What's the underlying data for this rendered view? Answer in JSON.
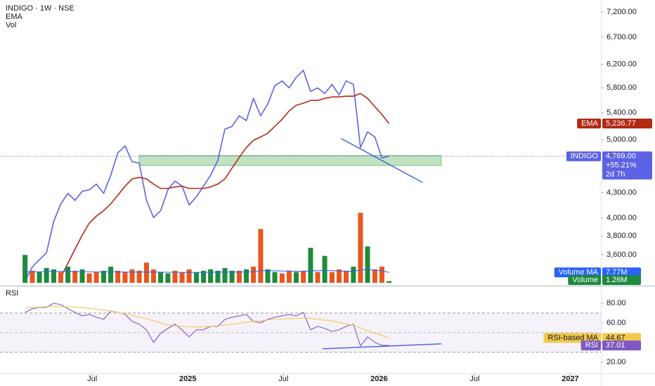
{
  "chart_data": [
    {
      "type": "line",
      "title": "INDIGO · 1W · NSE",
      "log": true,
      "change_label": "+55.21%",
      "countdown": "2d 7h",
      "xlim": [
        2024.018,
        2027.16
      ],
      "ylim": [
        3310,
        7450
      ],
      "yticks": [
        {
          "value": 7200,
          "label": "7,200.00"
        },
        {
          "value": 6700,
          "label": "6,700.00"
        },
        {
          "value": 6200,
          "label": "6,200.00"
        },
        {
          "value": 5800,
          "label": "5,800.00"
        },
        {
          "value": 5400,
          "label": "5,400.00"
        },
        {
          "value": 5000,
          "label": "5,000.00"
        },
        {
          "value": 4300,
          "label": "4,300.00"
        },
        {
          "value": 4000,
          "label": "4,000.00"
        },
        {
          "value": 3800,
          "label": "3,800.00"
        },
        {
          "value": 3600,
          "label": "3,600.00"
        }
      ],
      "x": [
        2024.149,
        2024.187,
        2024.224,
        2024.261,
        2024.299,
        2024.336,
        2024.373,
        2024.41,
        2024.448,
        2024.485,
        2024.522,
        2024.56,
        2024.597,
        2024.634,
        2024.672,
        2024.709,
        2024.746,
        2024.784,
        2024.821,
        2024.858,
        2024.896,
        2024.933,
        2024.97,
        2025.007,
        2025.045,
        2025.082,
        2025.119,
        2025.157,
        2025.194,
        2025.231,
        2025.269,
        2025.306,
        2025.343,
        2025.381,
        2025.418,
        2025.455,
        2025.493,
        2025.53,
        2025.567,
        2025.604,
        2025.642,
        2025.679,
        2025.716,
        2025.754,
        2025.791,
        2025.828,
        2025.866,
        2025.903,
        2025.94,
        2025.978,
        2026.015,
        2026.052
      ],
      "series": [
        {
          "name": "INDIGO",
          "color": "#5b62e3",
          "values": [
            3342,
            3478,
            3550,
            3620,
            3961,
            4164,
            4290,
            4205,
            4316,
            4334,
            4405,
            4290,
            4517,
            4815,
            4912,
            4696,
            4677,
            4205,
            4003,
            4083,
            4334,
            4443,
            4380,
            4150,
            4248,
            4380,
            4517,
            4714,
            5153,
            5194,
            5353,
            5280,
            5626,
            5353,
            5538,
            5832,
            5914,
            5797,
            5974,
            6095,
            5739,
            5797,
            5705,
            5855,
            5683,
            5914,
            5855,
            4890,
            5113,
            5040,
            4745,
            4769
          ],
          "value_labels": [
            null,
            null,
            null,
            null,
            null,
            null,
            null,
            null,
            null,
            null,
            null,
            null,
            null,
            null,
            null,
            null,
            null,
            null,
            null,
            null,
            null,
            null,
            null,
            null,
            null,
            null,
            null,
            null,
            null,
            null,
            null,
            null,
            null,
            null,
            null,
            null,
            null,
            null,
            null,
            null,
            null,
            null,
            null,
            null,
            null,
            null,
            null,
            null,
            null,
            null,
            null,
            "4,769.00"
          ]
        },
        {
          "name": "EMA",
          "color": "#b22a14",
          "values": [
            null,
            null,
            null,
            null,
            null,
            3376,
            3514,
            3658,
            3808,
            3941,
            4020,
            4083,
            4164,
            4266,
            4380,
            4471,
            4490,
            4471,
            4405,
            4351,
            4351,
            4369,
            4380,
            4351,
            4351,
            4351,
            4369,
            4405,
            4471,
            4610,
            4753,
            4890,
            4992,
            5040,
            5093,
            5194,
            5300,
            5429,
            5516,
            5549,
            5593,
            5593,
            5626,
            5650,
            5650,
            5661,
            5661,
            5706,
            5626,
            5494,
            5374,
            5236.77
          ],
          "value_labels": [
            null,
            null,
            null,
            null,
            null,
            null,
            null,
            null,
            null,
            null,
            null,
            null,
            null,
            null,
            null,
            null,
            null,
            null,
            null,
            null,
            null,
            null,
            null,
            null,
            null,
            null,
            null,
            null,
            null,
            null,
            null,
            null,
            null,
            null,
            null,
            null,
            null,
            null,
            null,
            null,
            null,
            null,
            null,
            null,
            null,
            null,
            null,
            null,
            null,
            null,
            null,
            "5,236.77"
          ]
        }
      ],
      "drawings": [
        {
          "type": "zone",
          "color": "#4caf50",
          "x": [
            2024.746,
            2026.325
          ],
          "y": [
            4780,
            4646
          ]
        },
        {
          "type": "trendline",
          "color": "#3d5fd9",
          "x": [
            2025.802,
            2026.228
          ],
          "y": [
            5017,
            4425
          ]
        }
      ]
    },
    {
      "type": "bar",
      "title": "Vol",
      "xlim": [
        2024.018,
        2027.16
      ],
      "ylim": [
        0,
        210
      ],
      "up_color": "#1e8a3c",
      "down_color": "#e8571f",
      "x": [
        2024.149,
        2024.187,
        2024.224,
        2024.261,
        2024.299,
        2024.336,
        2024.373,
        2024.41,
        2024.448,
        2024.485,
        2024.522,
        2024.56,
        2024.597,
        2024.634,
        2024.672,
        2024.709,
        2024.746,
        2024.784,
        2024.821,
        2024.858,
        2024.896,
        2024.933,
        2024.97,
        2025.007,
        2025.045,
        2025.082,
        2025.119,
        2025.157,
        2025.194,
        2025.231,
        2025.269,
        2025.306,
        2025.343,
        2025.381,
        2025.418,
        2025.455,
        2025.493,
        2025.53,
        2025.567,
        2025.604,
        2025.642,
        2025.679,
        2025.716,
        2025.754,
        2025.791,
        2025.828,
        2025.866,
        2025.903,
        2025.94,
        2025.978,
        2026.015,
        2026.052
      ],
      "series": [
        {
          "name": "Volume",
          "color": "#1e8a3c",
          "values": [
            20.7,
            9,
            8,
            11,
            10,
            8,
            12,
            9,
            10,
            7,
            8,
            9,
            12,
            9,
            8,
            10,
            9,
            15,
            10,
            8,
            7,
            9,
            8,
            10,
            8,
            9,
            10,
            9,
            11,
            9,
            9,
            10,
            12,
            40,
            10,
            8,
            7,
            9,
            8,
            9,
            26,
            8,
            20,
            8,
            10,
            9,
            12,
            52,
            27,
            10,
            12,
            1.26
          ],
          "up": [
            true,
            false,
            true,
            true,
            true,
            false,
            true,
            false,
            true,
            false,
            false,
            true,
            true,
            false,
            false,
            false,
            false,
            false,
            false,
            true,
            true,
            false,
            false,
            false,
            true,
            true,
            true,
            true,
            true,
            true,
            false,
            true,
            false,
            false,
            true,
            true,
            false,
            false,
            true,
            false,
            true,
            false,
            true,
            false,
            false,
            false,
            true,
            false,
            true,
            false,
            false,
            true
          ],
          "value_labels": [
            null,
            null,
            null,
            null,
            null,
            null,
            null,
            null,
            null,
            null,
            null,
            null,
            null,
            null,
            null,
            null,
            null,
            null,
            null,
            null,
            null,
            null,
            null,
            null,
            null,
            null,
            null,
            null,
            null,
            null,
            null,
            null,
            null,
            null,
            null,
            null,
            null,
            null,
            null,
            null,
            null,
            null,
            null,
            null,
            null,
            null,
            null,
            null,
            null,
            null,
            null,
            "1.26M"
          ]
        },
        {
          "name": "Volume MA",
          "type": "line",
          "color": "#2962ff",
          "values": [
            8.2,
            8.3,
            8.2,
            8.4,
            8.5,
            8.4,
            8.5,
            8.4,
            8.3,
            8.2,
            8.1,
            8.1,
            8.2,
            8.1,
            8.0,
            7.9,
            7.9,
            8.1,
            8.0,
            7.9,
            7.8,
            7.8,
            7.7,
            7.8,
            7.7,
            7.7,
            7.8,
            7.9,
            8.0,
            8.0,
            8.0,
            8.1,
            8.2,
            9.1,
            9.0,
            8.9,
            8.8,
            8.7,
            8.6,
            8.5,
            9.0,
            8.9,
            9.2,
            9.0,
            8.8,
            8.6,
            8.5,
            9.6,
            9.9,
            9.4,
            8.9,
            7.77
          ],
          "value_labels": [
            null,
            null,
            null,
            null,
            null,
            null,
            null,
            null,
            null,
            null,
            null,
            null,
            null,
            null,
            null,
            null,
            null,
            null,
            null,
            null,
            null,
            null,
            null,
            null,
            null,
            null,
            null,
            null,
            null,
            null,
            null,
            null,
            null,
            null,
            null,
            null,
            null,
            null,
            null,
            null,
            null,
            null,
            null,
            null,
            null,
            null,
            null,
            null,
            null,
            null,
            null,
            "7.77M"
          ]
        }
      ]
    },
    {
      "type": "line",
      "title": "RSI",
      "xlim": [
        2024.018,
        2027.16
      ],
      "ylim": [
        8.6,
        95.7
      ],
      "bands": [
        30,
        70
      ],
      "midline": 50,
      "band_color": "#7e57c2",
      "yticks": [
        {
          "value": 80,
          "label": "80.00"
        },
        {
          "value": 60,
          "label": "60.00"
        },
        {
          "value": 40,
          "label": "40.00"
        },
        {
          "value": 20,
          "label": "20.00"
        }
      ],
      "xticks": [
        {
          "value": 2024.5,
          "label": "Jul"
        },
        2025,
        {
          "value": 2025.5,
          "label": "Jul"
        },
        2026,
        {
          "value": 2026.5,
          "label": "Jul"
        },
        2027
      ],
      "x": [
        2024.149,
        2024.187,
        2024.224,
        2024.261,
        2024.299,
        2024.336,
        2024.373,
        2024.41,
        2024.448,
        2024.485,
        2024.522,
        2024.56,
        2024.597,
        2024.634,
        2024.672,
        2024.709,
        2024.746,
        2024.784,
        2024.821,
        2024.858,
        2024.896,
        2024.933,
        2024.97,
        2025.007,
        2025.045,
        2025.082,
        2025.119,
        2025.157,
        2025.194,
        2025.231,
        2025.269,
        2025.306,
        2025.343,
        2025.381,
        2025.418,
        2025.455,
        2025.493,
        2025.53,
        2025.567,
        2025.604,
        2025.642,
        2025.679,
        2025.716,
        2025.754,
        2025.791,
        2025.828,
        2025.866,
        2025.903,
        2025.94,
        2025.978,
        2026.015,
        2026.052
      ],
      "series": [
        {
          "name": "RSI",
          "color": "#7e57c2",
          "values": [
            70.7,
            74.3,
            75.7,
            75.7,
            80,
            78.6,
            74.3,
            70.7,
            67.1,
            68.6,
            65.7,
            63.6,
            72.1,
            70.7,
            68.6,
            61.4,
            58.6,
            52.9,
            40,
            49.3,
            54.3,
            58.6,
            52.9,
            45.7,
            52.9,
            52.9,
            56.4,
            56.4,
            63.6,
            65.7,
            67.1,
            68.6,
            61.4,
            60,
            63.6,
            65.7,
            67.1,
            68.6,
            67.1,
            70.7,
            52.9,
            56.4,
            54.3,
            51.4,
            52.9,
            56.4,
            58.6,
            36.4,
            45.7,
            40,
            37.1,
            37.01
          ]
        },
        {
          "name": "RSI-based MA",
          "color": "#f2c94c",
          "values": [
            75,
            75.5,
            76,
            76.4,
            76.5,
            76.5,
            76.4,
            76,
            75.5,
            74.8,
            74,
            73,
            72,
            70.5,
            69,
            67.5,
            66,
            64,
            62,
            60,
            58,
            57,
            56.5,
            56,
            55.8,
            56,
            56.5,
            57,
            57.8,
            58.6,
            59.5,
            60.5,
            61.4,
            62,
            63,
            63.6,
            64,
            64.3,
            64.5,
            64.8,
            64.5,
            63.6,
            62.8,
            62,
            60.5,
            59,
            57.5,
            55,
            52,
            49.5,
            47,
            44.67
          ]
        }
      ],
      "drawings": [
        {
          "type": "trendline",
          "color": "#3d5fd9",
          "x": [
            2025.705,
            2026.325
          ],
          "y": [
            33.6,
            38.6
          ]
        }
      ]
    }
  ]
}
